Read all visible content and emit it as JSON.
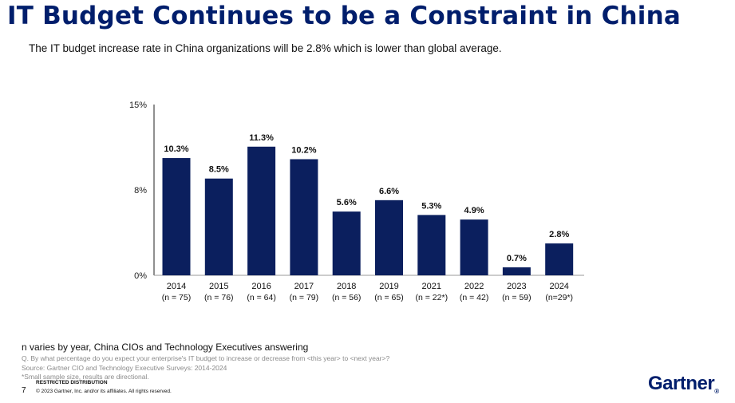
{
  "title": "IT Budget Continues to be a Constraint in China",
  "subtitle": "The IT budget increase rate in China organizations will be 2.8% which is lower than global average.",
  "chart_data": {
    "type": "bar",
    "title": "",
    "xlabel": "",
    "ylabel": "",
    "ylim": [
      0,
      15
    ],
    "y_ticks": [
      {
        "value": 0,
        "label": "0%"
      },
      {
        "value": 7.5,
        "label": "8%"
      },
      {
        "value": 15,
        "label": "15%"
      }
    ],
    "categories": [
      "2014",
      "2015",
      "2016",
      "2017",
      "2018",
      "2019",
      "2021",
      "2022",
      "2023",
      "2024"
    ],
    "sample_sizes": [
      "(n = 75)",
      "(n = 76)",
      "(n = 64)",
      "(n = 79)",
      "(n = 56)",
      "(n = 65)",
      "(n = 22*)",
      "(n = 42)",
      "(n = 59)",
      "(n=29*)"
    ],
    "values": [
      10.3,
      8.5,
      11.3,
      10.2,
      5.6,
      6.6,
      5.3,
      4.9,
      0.7,
      2.8
    ],
    "value_labels": [
      "10.3%",
      "8.5%",
      "11.3%",
      "10.2%",
      "5.6%",
      "6.6%",
      "5.3%",
      "4.9%",
      "0.7%",
      "2.8%"
    ],
    "bar_color": "#0b1f5e"
  },
  "footnotes": {
    "main": "n varies by year, China CIOs and Technology Executives answering",
    "question": "Q. By what percentage do you expect your enterprise's IT budget to increase or decrease from <this year> to <next year>?",
    "source": "Source: Gartner CIO and Technology Executive Surveys: 2014-2024",
    "small_sample": "*Small sample size, results are directional."
  },
  "footer": {
    "page_number": "7",
    "restricted": "RESTRICTED DISTRIBUTION",
    "copyright": "© 2023 Gartner, Inc. and/or its affiliates. All rights reserved.",
    "logo": "Gartner",
    "logo_mark": "®"
  },
  "colors": {
    "title": "#001e6c",
    "bar": "#0b1f5e"
  }
}
